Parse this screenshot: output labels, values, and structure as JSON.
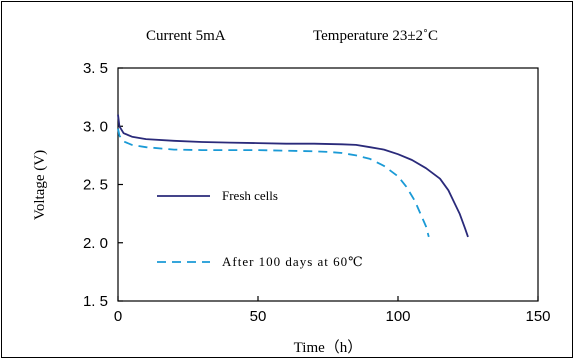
{
  "chart_data": {
    "type": "line",
    "header": {
      "current": "Current  5mA",
      "temperature": "Temperature  23±2˚C"
    },
    "xlabel": "Time（h）",
    "ylabel": "Voltage (V)",
    "xlim": [
      0,
      150
    ],
    "ylim": [
      1.5,
      3.5
    ],
    "x_ticks": [
      0,
      50,
      100,
      150
    ],
    "x_tick_labels": [
      "0",
      "50",
      "100",
      "150"
    ],
    "y_ticks": [
      1.5,
      2.0,
      2.5,
      3.0,
      3.5
    ],
    "y_tick_labels": [
      "1. 5",
      "2. 0",
      "2. 5",
      "3. 0",
      "3. 5"
    ],
    "grid": false,
    "legend_placement": "inside-lower-left",
    "series": [
      {
        "name": "Fresh cells",
        "color": "#2a2a7a",
        "style": "solid",
        "x": [
          0,
          0.5,
          2,
          5,
          10,
          20,
          30,
          40,
          50,
          60,
          70,
          80,
          85,
          90,
          95,
          100,
          105,
          110,
          115,
          118,
          120,
          122,
          124,
          125
        ],
        "y": [
          3.1,
          3.0,
          2.94,
          2.91,
          2.89,
          2.875,
          2.865,
          2.86,
          2.855,
          2.85,
          2.85,
          2.845,
          2.84,
          2.82,
          2.8,
          2.76,
          2.71,
          2.64,
          2.55,
          2.45,
          2.35,
          2.25,
          2.12,
          2.05
        ]
      },
      {
        "name": "After 100 days at 60℃",
        "color": "#1a9ad6",
        "style": "dashed",
        "x": [
          0,
          0.5,
          2,
          5,
          10,
          20,
          30,
          40,
          50,
          60,
          70,
          75,
          80,
          85,
          90,
          95,
          100,
          103,
          106,
          108,
          110,
          111
        ],
        "y": [
          2.98,
          2.92,
          2.87,
          2.84,
          2.82,
          2.8,
          2.795,
          2.795,
          2.795,
          2.79,
          2.785,
          2.78,
          2.77,
          2.75,
          2.72,
          2.66,
          2.57,
          2.48,
          2.36,
          2.25,
          2.14,
          2.05
        ]
      }
    ]
  }
}
